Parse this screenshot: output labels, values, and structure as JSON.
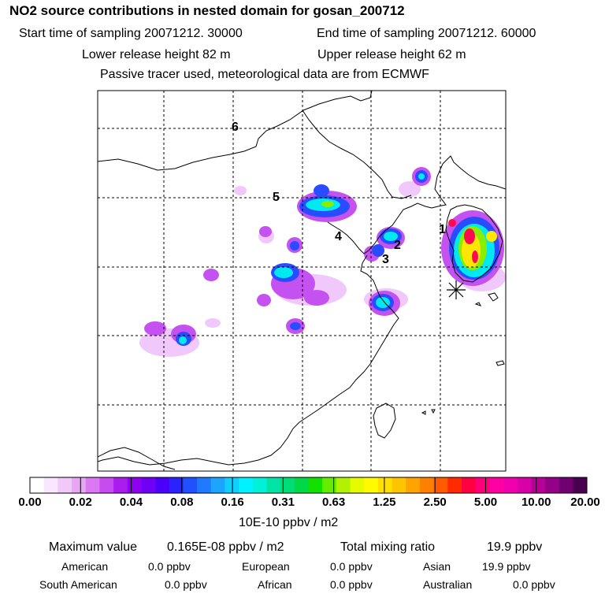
{
  "header": {
    "title": "NO2 source contributions in nested domain for gosan_200712",
    "start_time": "Start time of sampling 20071212. 30000",
    "end_time": "End time of sampling 20071212. 60000",
    "lower_height": "Lower release height   82 m",
    "upper_height": "Upper release height   62 m",
    "tracer_note": "Passive tracer used, meteorological data are from ECMWF"
  },
  "map": {
    "region_labels": [
      "1",
      "2",
      "3",
      "4",
      "5",
      "6"
    ],
    "receptor_marker": "station-asterisk"
  },
  "colorbar": {
    "tick_labels": [
      "0.00",
      "0.02",
      "0.04",
      "0.08",
      "0.16",
      "0.31",
      "0.63",
      "1.25",
      "2.50",
      "5.00",
      "10.00",
      "20.00"
    ],
    "colors": [
      "#ffffff",
      "#fbe6ff",
      "#f2c8fb",
      "#e9a6f7",
      "#dc78f3",
      "#c84bf0",
      "#ab1cee",
      "#9000f0",
      "#7000f5",
      "#4a00fa",
      "#2a22ff",
      "#2050ff",
      "#1f7aff",
      "#1ca4ff",
      "#10cfff",
      "#00f2ff",
      "#00f0d8",
      "#00e4a8",
      "#00dc78",
      "#00d848",
      "#14e000",
      "#66ec00",
      "#b2f200",
      "#e6fa00",
      "#fffa00",
      "#ffe000",
      "#ffc400",
      "#ffa300",
      "#ff8000",
      "#ff5a00",
      "#ff2a00",
      "#ff0040",
      "#ff007a",
      "#ff00a4",
      "#f200b0",
      "#d800a8",
      "#b80098",
      "#950088",
      "#700070",
      "#4a0050"
    ],
    "units": "10E-10 ppbv / m2"
  },
  "summary": {
    "max_label": "Maximum value",
    "max_value": "0.165E-08 ppbv / m2",
    "total_label": "Total mixing ratio",
    "total_value": "19.9 ppbv",
    "regions": [
      {
        "name": "American",
        "value": "0.0 ppbv"
      },
      {
        "name": "European",
        "value": "0.0 ppbv"
      },
      {
        "name": "Asian",
        "value": "19.9 ppbv"
      },
      {
        "name": "South American",
        "value": "0.0 ppbv"
      },
      {
        "name": "African",
        "value": "0.0 ppbv"
      },
      {
        "name": "Australian",
        "value": "0.0 ppbv"
      }
    ]
  }
}
